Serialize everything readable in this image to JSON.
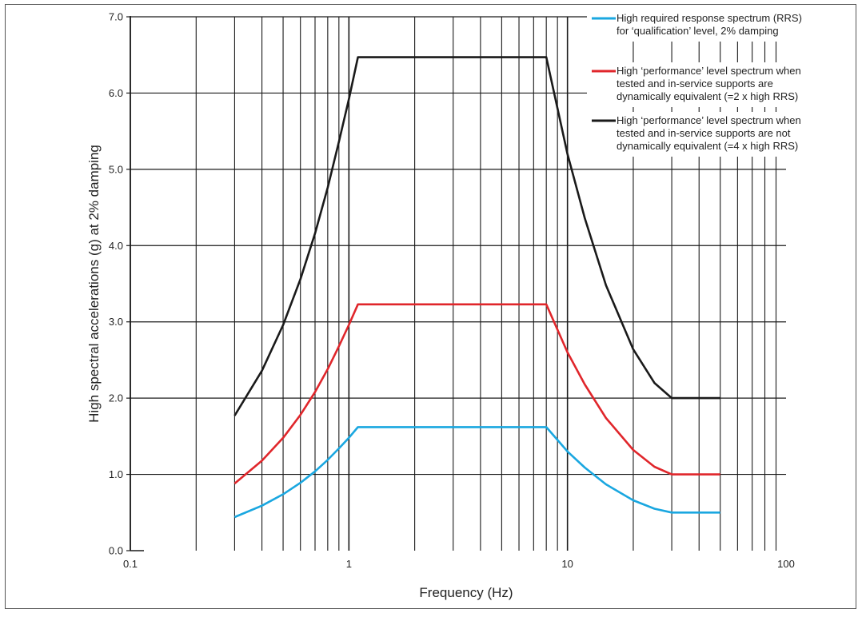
{
  "chart_data": {
    "type": "line",
    "title": "",
    "xlabel": "Frequency (Hz)",
    "ylabel": "High spectral accelerations (g) at 2% damping",
    "x_scale": "log",
    "xlim": [
      0.1,
      100
    ],
    "ylim": [
      0.0,
      7.0
    ],
    "x_tick_labels": [
      "0.1",
      "1",
      "10",
      "100"
    ],
    "y_tick_labels": [
      "0.0",
      "1.0",
      "2.0",
      "3.0",
      "4.0",
      "5.0",
      "6.0",
      "7.0"
    ],
    "grid": true,
    "legend_position": "top-right",
    "series": [
      {
        "name": "High required response spectrum (RRS) for ‘qualification’ level, 2% damping",
        "legend_lines": [
          "High required response spectrum (RRS)",
          "for ‘qualification’ level, 2% damping"
        ],
        "color": "#1aa7e0",
        "x": [
          0.3,
          0.4,
          0.5,
          0.6,
          0.7,
          0.8,
          0.9,
          1.0,
          1.1,
          2.0,
          5.0,
          8.0,
          10.0,
          12.0,
          15.0,
          20.0,
          25.0,
          30.0,
          33.0,
          50.0
        ],
        "y": [
          0.44,
          0.59,
          0.74,
          0.89,
          1.04,
          1.19,
          1.34,
          1.48,
          1.62,
          1.62,
          1.62,
          1.62,
          1.3,
          1.09,
          0.87,
          0.66,
          0.55,
          0.5,
          0.5,
          0.5
        ]
      },
      {
        "name": "High ‘performance’ level spectrum when tested and in-service supports are dynamically equivalent (=2 x high RRS)",
        "legend_lines": [
          "High ‘performance’ level spectrum when",
          "tested and in-service supports are",
          "dynamically equivalent (=2 x high RRS)"
        ],
        "color": "#e0262b",
        "x": [
          0.3,
          0.4,
          0.5,
          0.6,
          0.7,
          0.8,
          0.9,
          1.0,
          1.1,
          2.0,
          5.0,
          8.0,
          10.0,
          12.0,
          15.0,
          20.0,
          25.0,
          30.0,
          33.0,
          50.0
        ],
        "y": [
          0.88,
          1.18,
          1.48,
          1.78,
          2.08,
          2.38,
          2.68,
          2.96,
          3.23,
          3.23,
          3.23,
          3.23,
          2.6,
          2.18,
          1.74,
          1.32,
          1.1,
          1.0,
          1.0,
          1.0
        ]
      },
      {
        "name": "High ‘performance’ level spectrum when tested and in-service supports are not dynamically equivalent (=4 x high RRS)",
        "legend_lines": [
          "High ‘performance’ level spectrum when",
          "tested and in-service supports are not",
          "dynamically equivalent (=4 x high RRS)"
        ],
        "color": "#1a1a1a",
        "x": [
          0.3,
          0.4,
          0.5,
          0.6,
          0.7,
          0.8,
          0.9,
          1.0,
          1.1,
          2.0,
          5.0,
          8.0,
          10.0,
          12.0,
          15.0,
          20.0,
          25.0,
          30.0,
          33.0,
          50.0
        ],
        "y": [
          1.77,
          2.36,
          2.96,
          3.56,
          4.16,
          4.76,
          5.36,
          5.92,
          6.47,
          6.47,
          6.47,
          6.47,
          5.2,
          4.36,
          3.48,
          2.64,
          2.2,
          2.0,
          2.0,
          2.0
        ]
      }
    ]
  }
}
